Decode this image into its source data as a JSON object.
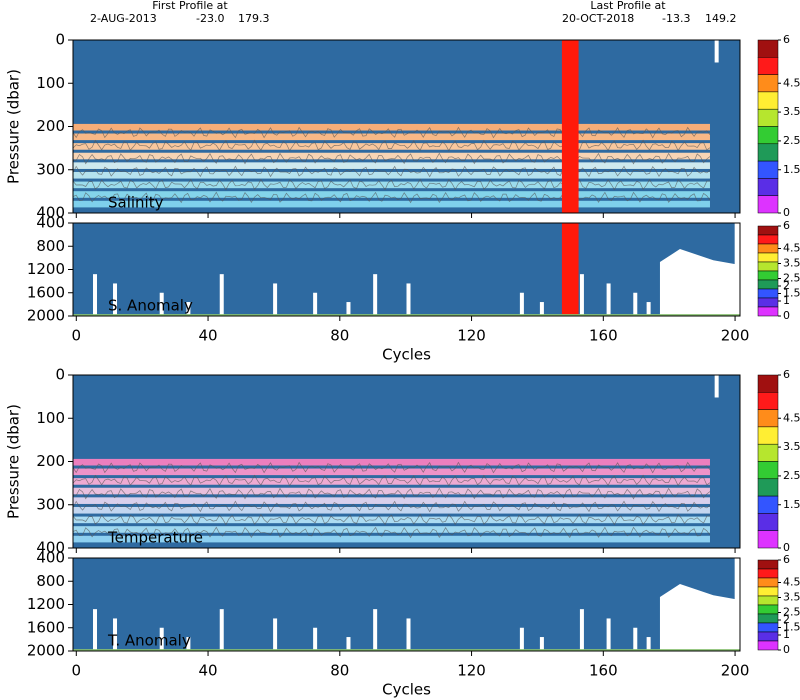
{
  "header": {
    "first_title": "First Profile at",
    "first_date": "2-AUG-2013",
    "first_lat": "-23.0",
    "first_lon": "179.3",
    "last_title": "Last Profile at",
    "last_date": "20-OCT-2018",
    "last_lat": "-13.3",
    "last_lon": "149.2"
  },
  "chart_data": [
    {
      "type": "heatmap",
      "label": "Salinity",
      "ylabel": "Pressure (dbar)",
      "xlim": [
        -1,
        201.5
      ],
      "xticks": [
        0,
        40,
        80,
        120,
        160,
        200
      ],
      "ylim": [
        0,
        400
      ],
      "yticks": [
        0,
        100,
        200,
        300,
        400
      ],
      "clim": [
        0,
        6
      ],
      "cticks": [
        0,
        1.5,
        2.5,
        3.5,
        4.5,
        6
      ],
      "colors": [
        "#a01010",
        "#ff1a1a",
        "#ff8c1a",
        "#ffee33",
        "#b6e62e",
        "#33cc33",
        "#1f9a58",
        "#3355ff",
        "#5a2ee6",
        "#dd33ff"
      ]
    },
    {
      "type": "heatmap",
      "label": "S. Anomaly",
      "xlabel": "Cycles",
      "xlim": [
        -1,
        201.5
      ],
      "xticks": [
        0,
        40,
        80,
        120,
        160,
        200
      ],
      "ylim": [
        400,
        2000
      ],
      "yticks": [
        400,
        800,
        1200,
        1600,
        2000
      ],
      "clim": [
        0,
        6
      ],
      "cticks": [
        0,
        1,
        1.5,
        2,
        2.5,
        3.5,
        4.5,
        6
      ],
      "colors": [
        "#a01010",
        "#ff1a1a",
        "#ff8c1a",
        "#ffee33",
        "#b6e62e",
        "#33cc33",
        "#1f9a58",
        "#3355ff",
        "#5a2ee6",
        "#dd33ff"
      ]
    },
    {
      "type": "heatmap",
      "label": "Temperature",
      "ylabel": "Pressure (dbar)",
      "xlim": [
        -1,
        201.5
      ],
      "xticks": [
        0,
        40,
        80,
        120,
        160,
        200
      ],
      "ylim": [
        0,
        400
      ],
      "yticks": [
        0,
        100,
        200,
        300,
        400
      ],
      "clim": [
        0,
        6
      ],
      "cticks": [
        0,
        1.5,
        2.5,
        3.5,
        4.5,
        6
      ],
      "colors": [
        "#a01010",
        "#ff1a1a",
        "#ff8c1a",
        "#ffee33",
        "#b6e62e",
        "#33cc33",
        "#1f9a58",
        "#3355ff",
        "#5a2ee6",
        "#dd33ff"
      ]
    },
    {
      "type": "heatmap",
      "label": "T. Anomaly",
      "xlabel": "Cycles",
      "xlim": [
        -1,
        201.5
      ],
      "xticks": [
        0,
        40,
        80,
        120,
        160,
        200
      ],
      "ylim": [
        400,
        2000
      ],
      "yticks": [
        400,
        800,
        1200,
        1600,
        2000
      ],
      "clim": [
        0,
        6
      ],
      "cticks": [
        0,
        1,
        1.5,
        2,
        2.5,
        3.5,
        4.5,
        6
      ],
      "colors": [
        "#a01010",
        "#ff1a1a",
        "#ff8c1a",
        "#ffee33",
        "#b6e62e",
        "#33cc33",
        "#1f9a58",
        "#3355ff",
        "#5a2ee6",
        "#dd33ff"
      ]
    }
  ]
}
